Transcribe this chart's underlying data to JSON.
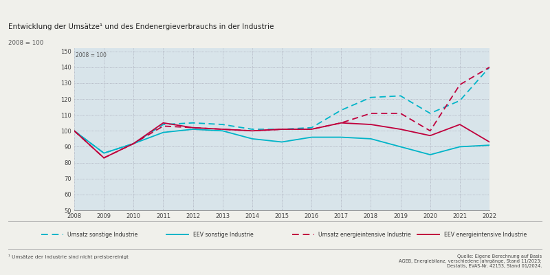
{
  "title": "Entwicklung der Umsätze¹ und des Endenergieverbrauchs in der Industrie",
  "subtitle_outer": "2008 = 100",
  "label_inner": "2008 = 100",
  "footnote": "¹ Umsätze der Industrie sind nicht preisbereinigt",
  "source": "Quelle: Eigene Berechnung auf Basis\nAGEB, Energiebilanz, verschiedene Jahrgänge, Stand 11/2023;\nDestatis, EVAS-Nr. 42153, Stand 01/2024.",
  "years": [
    2008,
    2009,
    2010,
    2011,
    2012,
    2013,
    2014,
    2015,
    2016,
    2017,
    2018,
    2019,
    2020,
    2021,
    2022
  ],
  "umsatz_sonstige": [
    100,
    86,
    92,
    104,
    105,
    104,
    101,
    101,
    102,
    113,
    121,
    122,
    111,
    119,
    140
  ],
  "eev_sonstige": [
    100,
    86,
    92,
    99,
    101,
    100,
    95,
    93,
    96,
    96,
    95,
    90,
    85,
    90,
    91
  ],
  "umsatz_energieintensiv": [
    100,
    83,
    92,
    103,
    102,
    101,
    100,
    101,
    101,
    105,
    111,
    111,
    100,
    129,
    140
  ],
  "eev_energieintensiv": [
    100,
    83,
    92,
    105,
    102,
    101,
    100,
    101,
    101,
    105,
    104,
    101,
    97,
    104,
    93
  ],
  "color_sonstige": "#00b4c8",
  "color_energieintensiv": "#c0003c",
  "ylim": [
    50,
    152
  ],
  "yticks": [
    50,
    60,
    70,
    80,
    90,
    100,
    110,
    120,
    130,
    140,
    150
  ],
  "fig_bg": "#f0f0eb",
  "plot_bg": "#d8e4ea",
  "top_bar_color": "#b0b0b0",
  "legend_items": [
    {
      "label": "Umsatz sonstige Industrie",
      "color": "#00b4c8",
      "dashed": true
    },
    {
      "label": "EEV sonstige Industrie",
      "color": "#00b4c8",
      "dashed": false
    },
    {
      "label": "Umsatz energieintensive Industrie",
      "color": "#c0003c",
      "dashed": true
    },
    {
      "label": "EEV energieintensive Industrie",
      "color": "#c0003c",
      "dashed": false
    }
  ]
}
